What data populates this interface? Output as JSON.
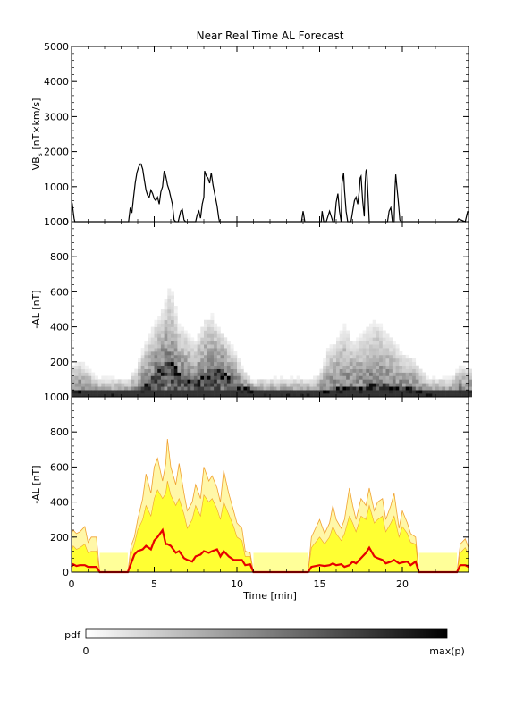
{
  "title": "Near Real Time AL Forecast",
  "x_axis": {
    "label": "Time [min]",
    "range": [
      0,
      24
    ],
    "ticks": [
      {
        "v": 0,
        "label": "0"
      },
      {
        "v": 5,
        "label": "5"
      },
      {
        "v": 10,
        "label": "10"
      },
      {
        "v": 15,
        "label": "15"
      },
      {
        "v": 20,
        "label": "20"
      }
    ]
  },
  "colorbar": {
    "label": "pdf",
    "min_label": "0",
    "max_label": "max(p)"
  },
  "colors": {
    "median": "#e60000",
    "band_fill": "#ffff33",
    "band_outline": "#f0a030",
    "flat_band": "#ffff99",
    "axes": "#000000"
  },
  "chart_data": [
    {
      "id": "vbs",
      "type": "line",
      "ylabel": "VBs [nT×km/s]",
      "ylabel_parts": {
        "main": "VB",
        "sub": "s",
        "rest": " [nT×km/s]"
      },
      "ylim": [
        0,
        5000
      ],
      "yticks": [
        {
          "v": 0,
          "label": "0"
        },
        {
          "v": 1000,
          "label": "1000"
        },
        {
          "v": 2000,
          "label": "2000"
        },
        {
          "v": 3000,
          "label": "3000"
        },
        {
          "v": 4000,
          "label": "4000"
        },
        {
          "v": 5000,
          "label": "5000"
        }
      ],
      "x": [
        0,
        0.05,
        0.1,
        0.15,
        0.2,
        0.3,
        3.45,
        3.55,
        3.65,
        3.75,
        3.85,
        3.95,
        4.05,
        4.15,
        4.2,
        4.3,
        4.4,
        4.5,
        4.6,
        4.7,
        4.8,
        4.9,
        5.0,
        5.1,
        5.2,
        5.3,
        5.4,
        5.5,
        5.6,
        5.7,
        5.8,
        5.9,
        6.0,
        6.1,
        6.2,
        6.3,
        6.45,
        6.6,
        6.7,
        6.8,
        6.9,
        7.0,
        7.2,
        7.5,
        7.6,
        7.7,
        7.8,
        7.9,
        8.0,
        8.05,
        8.15,
        8.25,
        8.35,
        8.45,
        8.55,
        8.7,
        8.8,
        8.9,
        8.95,
        9.0,
        9.05,
        9.1,
        9.2,
        9.3,
        9.4,
        9.5,
        9.6,
        13.9,
        14.0,
        14.1,
        15.1,
        15.15,
        15.25,
        15.3,
        15.4,
        15.6,
        15.8,
        15.9,
        16.0,
        16.1,
        16.2,
        16.3,
        16.35,
        16.45,
        16.5,
        16.6,
        16.7,
        16.8,
        16.9,
        17.0,
        17.1,
        17.2,
        17.3,
        17.4,
        17.45,
        17.5,
        17.6,
        17.7,
        17.75,
        17.8,
        17.85,
        18.0,
        19.0,
        19.1,
        19.2,
        19.3,
        19.4,
        19.5,
        19.55,
        19.6,
        19.65,
        19.75,
        19.85,
        19.95,
        23.2,
        23.3,
        23.4,
        23.8,
        23.95
      ],
      "y": [
        600,
        500,
        300,
        100,
        0,
        0,
        0,
        400,
        250,
        700,
        1100,
        1400,
        1550,
        1650,
        1650,
        1500,
        1200,
        900,
        750,
        700,
        900,
        800,
        650,
        600,
        700,
        500,
        850,
        1000,
        1450,
        1300,
        1050,
        900,
        700,
        500,
        50,
        0,
        0,
        300,
        350,
        50,
        0,
        0,
        0,
        0,
        200,
        300,
        100,
        500,
        700,
        1450,
        1300,
        1250,
        1100,
        1400,
        1050,
        700,
        450,
        100,
        0,
        0,
        0,
        0,
        0,
        0,
        0,
        0,
        0,
        0,
        300,
        0,
        0,
        300,
        0,
        0,
        0,
        300,
        0,
        0,
        550,
        800,
        300,
        0,
        1100,
        1400,
        900,
        300,
        0,
        0,
        0,
        300,
        600,
        700,
        500,
        900,
        1250,
        1300,
        600,
        150,
        1100,
        1450,
        1500,
        0,
        0,
        0,
        300,
        400,
        0,
        0,
        900,
        1350,
        1100,
        600,
        50,
        0,
        0,
        0,
        80,
        0,
        300
      ]
    },
    {
      "id": "pdf",
      "type": "heatmap",
      "ylabel": "-AL [nT]",
      "ylim": [
        0,
        1000
      ],
      "yticks": [
        {
          "v": 0,
          "label": "0"
        },
        {
          "v": 200,
          "label": "200"
        },
        {
          "v": 400,
          "label": "400"
        },
        {
          "v": 600,
          "label": "600"
        },
        {
          "v": 800,
          "label": "800"
        },
        {
          "v": 1000,
          "label": "1000"
        }
      ],
      "x": [
        0,
        0.5,
        1,
        1.5,
        2,
        2.5,
        3,
        3.5,
        4,
        4.5,
        5,
        5.5,
        6,
        6.5,
        7,
        7.5,
        8,
        8.5,
        9,
        9.5,
        10,
        10.5,
        11,
        11.5,
        12,
        12.5,
        13,
        13.5,
        14,
        14.5,
        15,
        15.5,
        16,
        16.5,
        17,
        17.5,
        18,
        18.5,
        19,
        19.5,
        20,
        20.5,
        21,
        21.5,
        22,
        22.5,
        23,
        23.5,
        24
      ],
      "median": [
        30,
        40,
        30,
        20,
        15,
        15,
        15,
        15,
        30,
        80,
        140,
        180,
        210,
        150,
        100,
        90,
        130,
        170,
        160,
        120,
        80,
        60,
        40,
        15,
        15,
        15,
        15,
        15,
        15,
        15,
        20,
        40,
        50,
        60,
        60,
        50,
        70,
        90,
        80,
        60,
        50,
        50,
        40,
        15,
        15,
        15,
        15,
        40,
        40
      ],
      "upper": [
        200,
        230,
        180,
        120,
        120,
        120,
        120,
        120,
        200,
        350,
        450,
        550,
        700,
        450,
        400,
        350,
        480,
        500,
        420,
        350,
        250,
        150,
        100,
        120,
        120,
        120,
        120,
        120,
        120,
        120,
        150,
        300,
        350,
        450,
        350,
        400,
        450,
        480,
        400,
        350,
        280,
        250,
        200,
        120,
        120,
        120,
        120,
        200,
        180
      ]
    },
    {
      "id": "forecast",
      "type": "area",
      "ylabel": "-AL [nT]",
      "ylim": [
        0,
        1000
      ],
      "yticks": [
        {
          "v": 0,
          "label": "0"
        },
        {
          "v": 200,
          "label": "200"
        },
        {
          "v": 400,
          "label": "400"
        },
        {
          "v": 600,
          "label": "600"
        },
        {
          "v": 800,
          "label": "800"
        },
        {
          "v": 1000,
          "label": "1000"
        }
      ],
      "x": [
        0,
        0.1,
        0.3,
        0.5,
        0.8,
        1.0,
        1.2,
        1.5,
        1.7,
        3.4,
        3.6,
        3.8,
        4.0,
        4.3,
        4.5,
        4.8,
        5.0,
        5.2,
        5.5,
        5.7,
        5.8,
        6.0,
        6.3,
        6.5,
        6.8,
        7.0,
        7.3,
        7.5,
        7.8,
        8.0,
        8.3,
        8.5,
        8.8,
        9.0,
        9.2,
        9.5,
        9.8,
        10.0,
        10.3,
        10.5,
        10.8,
        11.0,
        14.3,
        14.5,
        15.0,
        15.3,
        15.6,
        15.8,
        16.0,
        16.3,
        16.5,
        16.8,
        17.0,
        17.2,
        17.5,
        17.8,
        18.0,
        18.3,
        18.5,
        18.8,
        19.0,
        19.3,
        19.5,
        19.8,
        20.0,
        20.3,
        20.5,
        20.8,
        21.0,
        23.3,
        23.5,
        23.8,
        24.0
      ],
      "median": [
        30,
        45,
        35,
        40,
        40,
        30,
        30,
        30,
        0,
        0,
        50,
        100,
        120,
        130,
        150,
        130,
        180,
        200,
        240,
        160,
        160,
        150,
        110,
        120,
        80,
        70,
        60,
        90,
        100,
        120,
        110,
        120,
        130,
        90,
        120,
        90,
        70,
        70,
        70,
        40,
        45,
        0,
        0,
        30,
        40,
        35,
        40,
        50,
        40,
        45,
        30,
        40,
        60,
        50,
        80,
        110,
        140,
        90,
        80,
        70,
        50,
        60,
        70,
        50,
        55,
        60,
        40,
        60,
        0,
        0,
        40,
        40,
        30
      ],
      "upper": [
        220,
        240,
        220,
        230,
        260,
        170,
        200,
        200,
        0,
        0,
        150,
        200,
        300,
        420,
        560,
        450,
        600,
        650,
        520,
        620,
        760,
        600,
        500,
        620,
        450,
        350,
        400,
        500,
        420,
        600,
        520,
        550,
        480,
        400,
        580,
        450,
        350,
        280,
        250,
        120,
        110,
        0,
        0,
        200,
        300,
        220,
        280,
        380,
        300,
        250,
        300,
        480,
        380,
        300,
        420,
        380,
        480,
        350,
        400,
        420,
        300,
        380,
        450,
        250,
        350,
        280,
        220,
        200,
        0,
        0,
        160,
        190,
        140
      ],
      "band": [
        120,
        150,
        130,
        140,
        160,
        110,
        120,
        120,
        0,
        0,
        100,
        160,
        240,
        300,
        380,
        320,
        420,
        470,
        420,
        450,
        520,
        440,
        380,
        420,
        330,
        250,
        300,
        380,
        320,
        440,
        400,
        420,
        360,
        300,
        400,
        330,
        260,
        200,
        180,
        90,
        90,
        0,
        0,
        140,
        200,
        160,
        200,
        260,
        220,
        180,
        220,
        320,
        280,
        230,
        320,
        300,
        380,
        280,
        300,
        320,
        230,
        280,
        320,
        200,
        260,
        220,
        170,
        160,
        0,
        0,
        110,
        140,
        100
      ],
      "flat_band_level": 110,
      "flat_segments": [
        [
          1.7,
          3.4
        ],
        [
          11.0,
          14.3
        ],
        [
          21.0,
          23.3
        ]
      ]
    }
  ]
}
